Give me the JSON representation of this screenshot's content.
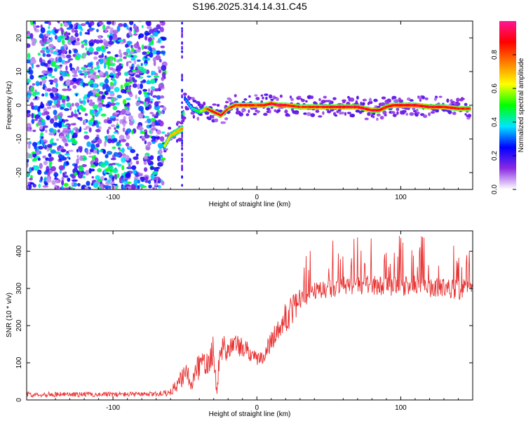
{
  "chart_data": [
    {
      "type": "heatmap",
      "title": "S196.2025.314.14.31.C45",
      "xlabel": "Height of straight line (km)",
      "ylabel": "Frequency (Hz)",
      "xlim": [
        -160,
        150
      ],
      "ylim": [
        -25,
        25
      ],
      "xticks": [
        -100,
        0,
        100
      ],
      "yticks": [
        -20,
        -10,
        0,
        10,
        20
      ],
      "noise_region_x": [
        -160,
        -64
      ],
      "signal_region_x": [
        -64,
        150
      ],
      "ridge": {
        "x": [
          -64,
          -60,
          -56,
          -52,
          -50,
          -45,
          -40,
          -35,
          -30,
          -25,
          -20,
          -15,
          -10,
          -5,
          0,
          5,
          10,
          15,
          20,
          30,
          40,
          50,
          60,
          70,
          80,
          85,
          90,
          95,
          100,
          110,
          120,
          130,
          140,
          148
        ],
        "freq": [
          -12,
          -9,
          -8,
          -7,
          2,
          -1,
          -2,
          -1,
          -2,
          -3,
          -1,
          0,
          0,
          0,
          0,
          0,
          0.5,
          0,
          0,
          -0.5,
          -0.5,
          -0.5,
          -0.5,
          -0.5,
          -1.5,
          -1.5,
          -0.5,
          0,
          0,
          0,
          -0.5,
          -0.5,
          -1,
          -1
        ],
        "amplitude": [
          0.6,
          0.65,
          0.7,
          0.7,
          0.3,
          0.4,
          0.5,
          0.75,
          0.85,
          0.85,
          0.8,
          0.8,
          0.85,
          0.85,
          0.8,
          0.85,
          0.9,
          0.95,
          0.9,
          0.8,
          0.85,
          0.85,
          0.9,
          0.9,
          0.9,
          0.9,
          0.85,
          0.85,
          0.9,
          0.9,
          0.9,
          0.85,
          0.85,
          0.8
        ]
      },
      "colorbar": {
        "label": "Normalized spectral amplitude",
        "range": [
          0,
          1
        ],
        "ticks": [
          "0.0",
          "0.2",
          "0.4",
          "0.6",
          "0.8"
        ],
        "tick_values": [
          0.0,
          0.2,
          0.4,
          0.6,
          0.8
        ],
        "colors": [
          "#ffffff",
          "#8a2be2",
          "#0000ff",
          "#00e5ff",
          "#00ff00",
          "#ffff00",
          "#ff8000",
          "#ff0000",
          "#ff1493"
        ]
      }
    },
    {
      "type": "line",
      "xlabel": "Height of straight line (km)",
      "ylabel": "SNR (10 * v/v)",
      "xlim": [
        -160,
        150
      ],
      "ylim": [
        0,
        455
      ],
      "xticks": [
        -100,
        0,
        100
      ],
      "yticks": [
        0,
        100,
        200,
        300,
        400
      ],
      "color": "#e83030",
      "series": [
        {
          "name": "SNR",
          "x": [
            -160,
            -140,
            -120,
            -100,
            -80,
            -70,
            -60,
            -55,
            -50,
            -45,
            -40,
            -35,
            -30,
            -28,
            -25,
            -20,
            -15,
            -10,
            -5,
            0,
            5,
            10,
            15,
            20,
            25,
            30,
            40,
            50,
            60,
            70,
            80,
            90,
            100,
            110,
            120,
            130,
            140,
            150
          ],
          "values": [
            15,
            15,
            15,
            15,
            15,
            16,
            20,
            35,
            60,
            40,
            80,
            100,
            120,
            20,
            130,
            130,
            140,
            130,
            120,
            100,
            115,
            150,
            180,
            210,
            230,
            270,
            290,
            300,
            305,
            310,
            310,
            305,
            305,
            310,
            300,
            305,
            295,
            310
          ],
          "spread": [
            15,
            15,
            15,
            15,
            15,
            15,
            20,
            40,
            60,
            60,
            90,
            110,
            100,
            40,
            80,
            70,
            60,
            60,
            50,
            40,
            40,
            60,
            70,
            80,
            90,
            110,
            120,
            120,
            120,
            120,
            120,
            120,
            120,
            120,
            120,
            120,
            120,
            110
          ]
        }
      ]
    }
  ]
}
